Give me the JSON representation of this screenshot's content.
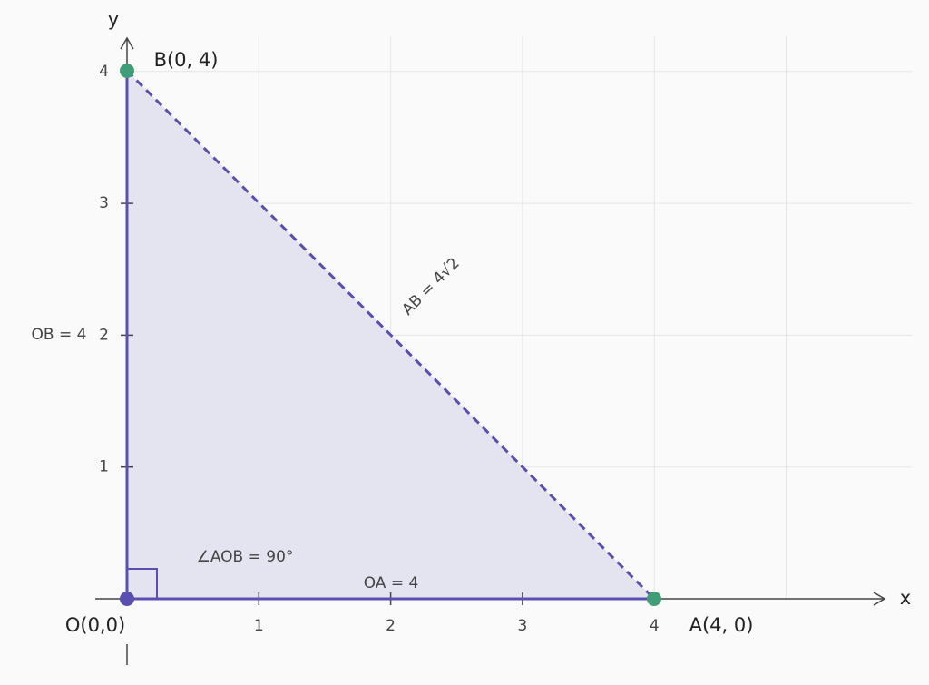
{
  "axes": {
    "x_label": "x",
    "y_label": "y",
    "x_ticks": [
      "1",
      "2",
      "3",
      "4"
    ],
    "y_ticks": [
      "1",
      "2",
      "3",
      "4"
    ]
  },
  "points": {
    "O": "O(0,0)",
    "A": "A(4, 0)",
    "B": "B(0, 4)"
  },
  "segments": {
    "OA": "OA = 4",
    "OB": "OB = 4",
    "AB": "AB = 4√2"
  },
  "angle": "∠AOB = 90°"
}
